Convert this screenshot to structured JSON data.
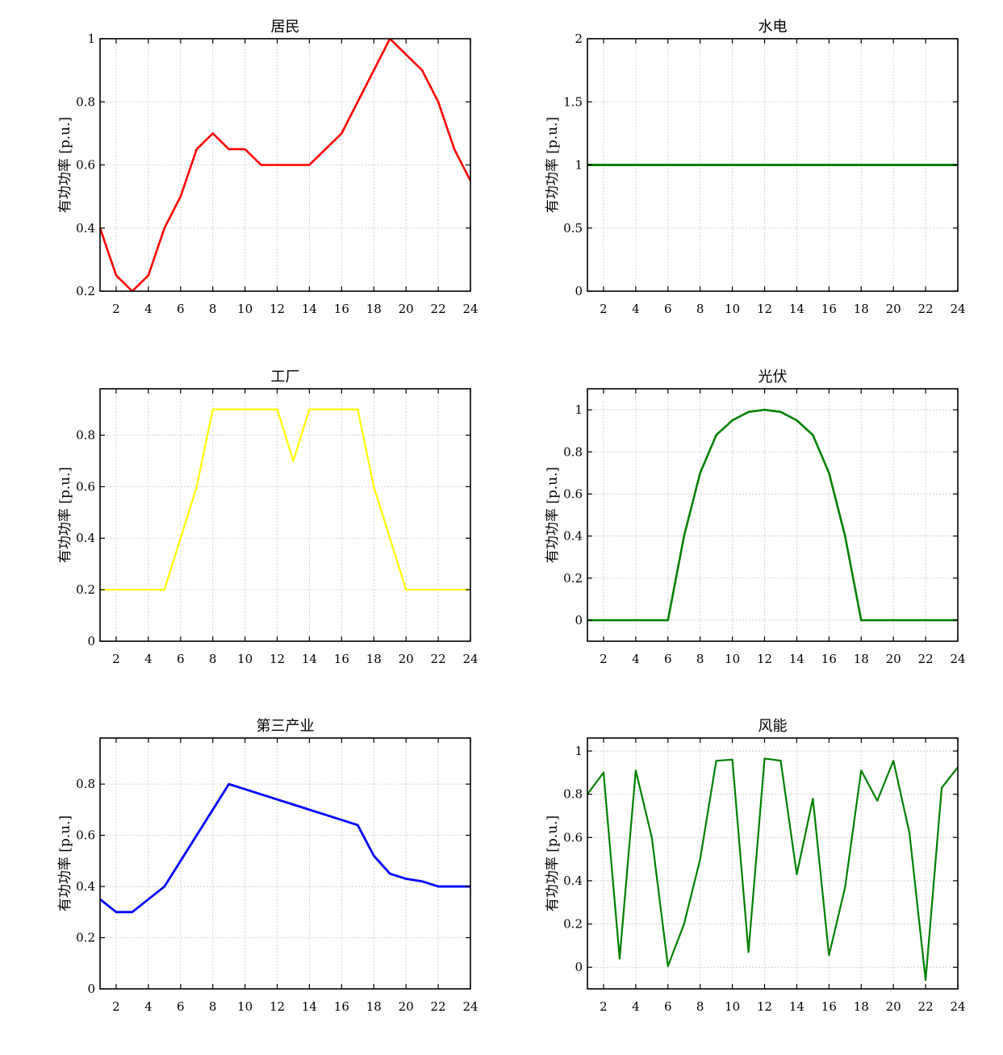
{
  "chart_data": [
    {
      "type": "line",
      "title": "居民",
      "ylabel": "有功功率 [p.u.]",
      "xlabel": "",
      "color": "#ff0000",
      "x": [
        1,
        2,
        3,
        4,
        5,
        6,
        7,
        8,
        9,
        10,
        11,
        12,
        13,
        14,
        15,
        16,
        17,
        18,
        19,
        20,
        21,
        22,
        23,
        24
      ],
      "values": [
        0.4,
        0.25,
        0.2,
        0.25,
        0.4,
        0.5,
        0.65,
        0.7,
        0.65,
        0.65,
        0.6,
        0.6,
        0.6,
        0.6,
        0.65,
        0.7,
        0.8,
        0.9,
        1.0,
        0.95,
        0.9,
        0.8,
        0.65,
        0.55
      ],
      "xlim": [
        1,
        24
      ],
      "ylim": [
        0.2,
        1.0
      ],
      "xticks": [
        "2",
        "4",
        "6",
        "8",
        "10",
        "12",
        "14",
        "16",
        "18",
        "20",
        "22",
        "24"
      ],
      "yticks": [
        "0.2",
        "0.4",
        "0.6",
        "0.8",
        "1"
      ],
      "grid": true
    },
    {
      "type": "line",
      "title": "水电",
      "ylabel": "有功功率 [p.u.]",
      "xlabel": "",
      "color": "#008000",
      "x": [
        1,
        2,
        3,
        4,
        5,
        6,
        7,
        8,
        9,
        10,
        11,
        12,
        13,
        14,
        15,
        16,
        17,
        18,
        19,
        20,
        21,
        22,
        23,
        24
      ],
      "values": [
        1,
        1,
        1,
        1,
        1,
        1,
        1,
        1,
        1,
        1,
        1,
        1,
        1,
        1,
        1,
        1,
        1,
        1,
        1,
        1,
        1,
        1,
        1,
        1
      ],
      "xlim": [
        1,
        24
      ],
      "ylim": [
        0,
        2
      ],
      "xticks": [
        "2",
        "4",
        "6",
        "8",
        "10",
        "12",
        "14",
        "16",
        "18",
        "20",
        "22",
        "24"
      ],
      "yticks": [
        "0",
        "0.5",
        "1",
        "1.5",
        "2"
      ],
      "grid": true
    },
    {
      "type": "line",
      "title": "工厂",
      "ylabel": "有功功率 [p.u.]",
      "xlabel": "",
      "color": "#ffff00",
      "x": [
        1,
        2,
        3,
        4,
        5,
        6,
        7,
        8,
        9,
        10,
        11,
        12,
        13,
        14,
        15,
        16,
        17,
        18,
        19,
        20,
        21,
        22,
        23,
        24
      ],
      "values": [
        0.2,
        0.2,
        0.2,
        0.2,
        0.2,
        0.4,
        0.6,
        0.9,
        0.9,
        0.9,
        0.9,
        0.9,
        0.7,
        0.9,
        0.9,
        0.9,
        0.9,
        0.6,
        0.4,
        0.2,
        0.2,
        0.2,
        0.2,
        0.2
      ],
      "xlim": [
        1,
        24
      ],
      "ylim": [
        0,
        0.98
      ],
      "xticks": [
        "2",
        "4",
        "6",
        "8",
        "10",
        "12",
        "14",
        "16",
        "18",
        "20",
        "22",
        "24"
      ],
      "yticks": [
        "0",
        "0.2",
        "0.4",
        "0.6",
        "0.8"
      ],
      "grid": true
    },
    {
      "type": "line",
      "title": "光伏",
      "ylabel": "有功功率 [p.u.]",
      "xlabel": "",
      "color": "#008000",
      "x": [
        1,
        2,
        3,
        4,
        5,
        6,
        7,
        8,
        9,
        10,
        11,
        12,
        13,
        14,
        15,
        16,
        17,
        18,
        19,
        20,
        21,
        22,
        23,
        24
      ],
      "values": [
        0,
        0,
        0,
        0,
        0,
        0,
        0.4,
        0.7,
        0.88,
        0.95,
        0.99,
        1.0,
        0.99,
        0.95,
        0.88,
        0.7,
        0.4,
        0,
        0,
        0,
        0,
        0,
        0,
        0
      ],
      "xlim": [
        1,
        24
      ],
      "ylim": [
        -0.1,
        1.1
      ],
      "xticks": [
        "2",
        "4",
        "6",
        "8",
        "10",
        "12",
        "14",
        "16",
        "18",
        "20",
        "22",
        "24"
      ],
      "yticks": [
        "0",
        "0.2",
        "0.4",
        "0.6",
        "0.8",
        "1"
      ],
      "grid": true
    },
    {
      "type": "line",
      "title": "第三产业",
      "ylabel": "有功功率 [p.u.]",
      "xlabel": "",
      "color": "#0000ff",
      "x": [
        1,
        2,
        3,
        4,
        5,
        6,
        7,
        8,
        9,
        10,
        11,
        12,
        13,
        14,
        15,
        16,
        17,
        18,
        19,
        20,
        21,
        22,
        23,
        24
      ],
      "values": [
        0.35,
        0.3,
        0.3,
        0.35,
        0.4,
        0.5,
        0.6,
        0.7,
        0.8,
        0.78,
        0.76,
        0.74,
        0.72,
        0.7,
        0.68,
        0.66,
        0.64,
        0.52,
        0.45,
        0.43,
        0.42,
        0.4,
        0.4,
        0.4
      ],
      "xlim": [
        1,
        24
      ],
      "ylim": [
        0,
        0.98
      ],
      "xticks": [
        "2",
        "4",
        "6",
        "8",
        "10",
        "12",
        "14",
        "16",
        "18",
        "20",
        "22",
        "24"
      ],
      "yticks": [
        "0",
        "0.2",
        "0.4",
        "0.6",
        "0.8"
      ],
      "grid": true
    },
    {
      "type": "line",
      "title": "风能",
      "ylabel": "有功功率 [p.u.]",
      "xlabel": "",
      "color": "#008000",
      "x": [
        1,
        2,
        3,
        4,
        5,
        6,
        7,
        8,
        9,
        10,
        11,
        12,
        13,
        14,
        15,
        16,
        17,
        18,
        19,
        20,
        21,
        22,
        23,
        24
      ],
      "values": [
        0.8,
        0.9,
        0.04,
        0.91,
        0.6,
        0.005,
        0.2,
        0.5,
        0.955,
        0.96,
        0.07,
        0.965,
        0.955,
        0.43,
        0.78,
        0.055,
        0.37,
        0.91,
        0.77,
        0.955,
        0.62,
        -0.06,
        0.83,
        0.925
      ],
      "xlim": [
        1,
        24
      ],
      "ylim": [
        -0.1,
        1.06
      ],
      "xticks": [
        "2",
        "4",
        "6",
        "8",
        "10",
        "12",
        "14",
        "16",
        "18",
        "20",
        "22",
        "24"
      ],
      "yticks": [
        "0",
        "0.2",
        "0.4",
        "0.6",
        "0.8",
        "1"
      ],
      "grid": true
    }
  ]
}
